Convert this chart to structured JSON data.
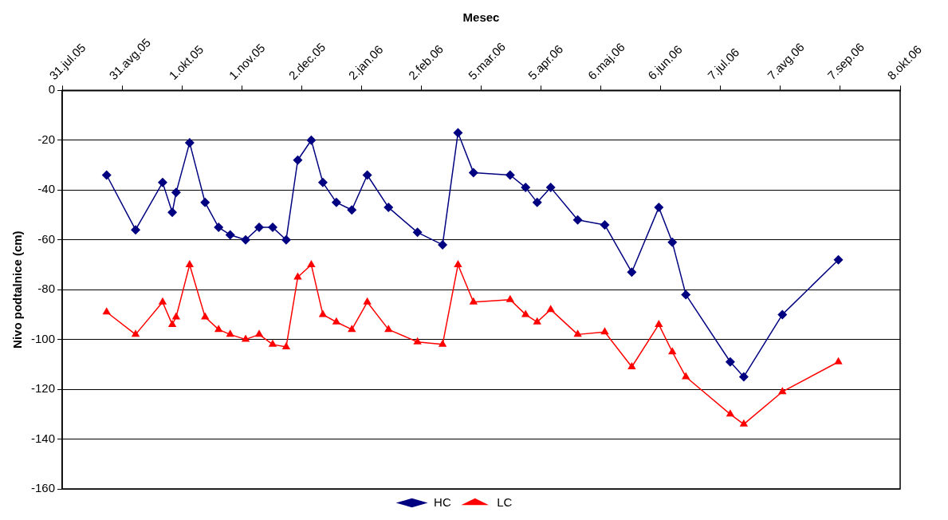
{
  "chart_data": {
    "type": "line",
    "xlabel": "Mesec",
    "ylabel": "Nivo podtalnice (cm)",
    "x": [
      "2005-08-23",
      "2005-09-07",
      "2005-09-21",
      "2005-09-26",
      "2005-09-28",
      "2005-10-05",
      "2005-10-13",
      "2005-10-20",
      "2005-10-26",
      "2005-11-03",
      "2005-11-10",
      "2005-11-17",
      "2005-11-24",
      "2005-11-30",
      "2005-12-07",
      "2005-12-13",
      "2005-12-20",
      "2005-12-28",
      "2006-01-05",
      "2006-01-16",
      "2006-01-31",
      "2006-02-13",
      "2006-02-21",
      "2006-03-01",
      "2006-03-20",
      "2006-03-28",
      "2006-04-03",
      "2006-04-10",
      "2006-04-24",
      "2006-05-08",
      "2006-05-22",
      "2006-06-05",
      "2006-06-12",
      "2006-06-19",
      "2006-07-12",
      "2006-07-19",
      "2006-08-08",
      "2006-09-06"
    ],
    "series": [
      {
        "name": "HC",
        "color": "#000080",
        "marker": "diamond",
        "values": [
          -34,
          -56,
          -37,
          -49,
          -41,
          -21,
          -45,
          -55,
          -58,
          -60,
          -55,
          -55,
          -60,
          -28,
          -20,
          -37,
          -45,
          -48,
          -34,
          -47,
          -57,
          -62,
          -17,
          -33,
          -34,
          -39,
          -45,
          -39,
          -52,
          -54,
          -73,
          -47,
          -61,
          -82,
          -109,
          -115,
          -90,
          -68
        ]
      },
      {
        "name": "LC",
        "color": "#ff0000",
        "marker": "triangle",
        "values": [
          -89,
          -98,
          -85,
          -94,
          -91,
          -70,
          -91,
          -96,
          -98,
          -100,
          -98,
          -102,
          -103,
          -75,
          -70,
          -90,
          -93,
          -96,
          -85,
          -96,
          -101,
          -102,
          -70,
          -85,
          -84,
          -90,
          -93,
          -88,
          -98,
          -97,
          -111,
          -94,
          -105,
          -115,
          -130,
          -134,
          -121,
          -109
        ]
      }
    ],
    "xlim": [
      "2005-07-31",
      "2006-10-08"
    ],
    "xticks": [
      {
        "value": "2005-07-31",
        "label": "31.jul.05"
      },
      {
        "value": "2005-08-31",
        "label": "31.avg.05"
      },
      {
        "value": "2005-10-01",
        "label": "1.okt.05"
      },
      {
        "value": "2005-11-01",
        "label": "1.nov.05"
      },
      {
        "value": "2005-12-02",
        "label": "2.dec.05"
      },
      {
        "value": "2006-01-02",
        "label": "2.jan.06"
      },
      {
        "value": "2006-02-02",
        "label": "2.feb.06"
      },
      {
        "value": "2006-03-05",
        "label": "5.mar.06"
      },
      {
        "value": "2006-04-05",
        "label": "5.apr.06"
      },
      {
        "value": "2006-05-06",
        "label": "6.maj.06"
      },
      {
        "value": "2006-06-06",
        "label": "6.jun.06"
      },
      {
        "value": "2006-07-07",
        "label": "7.jul.06"
      },
      {
        "value": "2006-08-07",
        "label": "7.avg.06"
      },
      {
        "value": "2006-09-07",
        "label": "7.sep.06"
      },
      {
        "value": "2006-10-08",
        "label": "8.okt.06"
      }
    ],
    "ylim": [
      -160,
      0
    ],
    "yticks": [
      -160,
      -140,
      -120,
      -100,
      -80,
      -60,
      -40,
      -20,
      0
    ],
    "grid": "y",
    "legend": "bottom",
    "line_style": "solid"
  }
}
